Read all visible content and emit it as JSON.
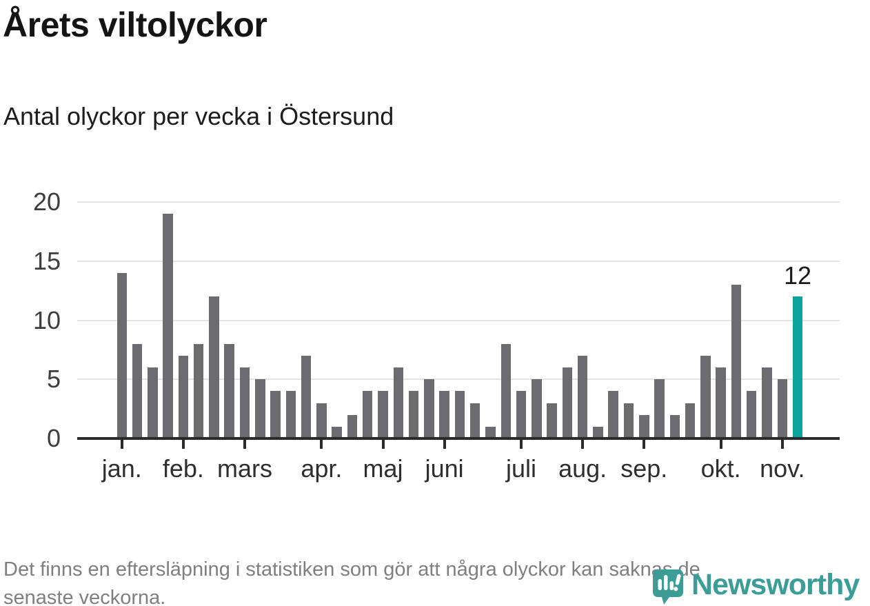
{
  "title": "Årets viltolyckor",
  "subtitle": "Antal olyckor per vecka i Östersund",
  "footnote": {
    "line1": "Det finns en eftersläpning i statistiken som gör att några olyckor kan saknas de",
    "line2": "senaste veckorna."
  },
  "branding": {
    "name": "Newsworthy",
    "icon": "newsworthy-pin-barchart-icon"
  },
  "colors": {
    "bar": "#6b6b70",
    "highlight": "#0ba39d",
    "grid": "#e4e4e4",
    "axis": "#2b2b2b",
    "tick_label": "#3d3d3d",
    "title_text": "#141414",
    "footnote_text": "#7f7f82",
    "brand_teal": "#3b9d95"
  },
  "chart_data": {
    "type": "bar",
    "title": "Årets viltolyckor",
    "subtitle": "Antal olyckor per vecka i Östersund",
    "xlabel": "",
    "ylabel": "",
    "unit": "olyckor per vecka",
    "values": [
      14,
      8,
      6,
      19,
      7,
      8,
      12,
      8,
      6,
      5,
      4,
      4,
      7,
      3,
      1,
      2,
      4,
      4,
      6,
      4,
      5,
      4,
      4,
      3,
      1,
      8,
      4,
      5,
      3,
      6,
      7,
      1,
      4,
      3,
      2,
      5,
      2,
      3,
      7,
      6,
      13,
      4,
      6,
      5,
      12
    ],
    "highlight_index": 44,
    "highlight_label": "12",
    "y_ticks": [
      0,
      5,
      10,
      15,
      20
    ],
    "ylim": [
      0,
      20
    ],
    "grid": true,
    "legend": false,
    "month_ticks": [
      {
        "label": "jan.",
        "week_index": 0
      },
      {
        "label": "feb.",
        "week_index": 4
      },
      {
        "label": "mars",
        "week_index": 8
      },
      {
        "label": "apr.",
        "week_index": 13
      },
      {
        "label": "maj",
        "week_index": 17
      },
      {
        "label": "juni",
        "week_index": 21
      },
      {
        "label": "juli",
        "week_index": 26
      },
      {
        "label": "aug.",
        "week_index": 30
      },
      {
        "label": "sep.",
        "week_index": 34
      },
      {
        "label": "okt.",
        "week_index": 39
      },
      {
        "label": "nov.",
        "week_index": 43
      }
    ]
  }
}
